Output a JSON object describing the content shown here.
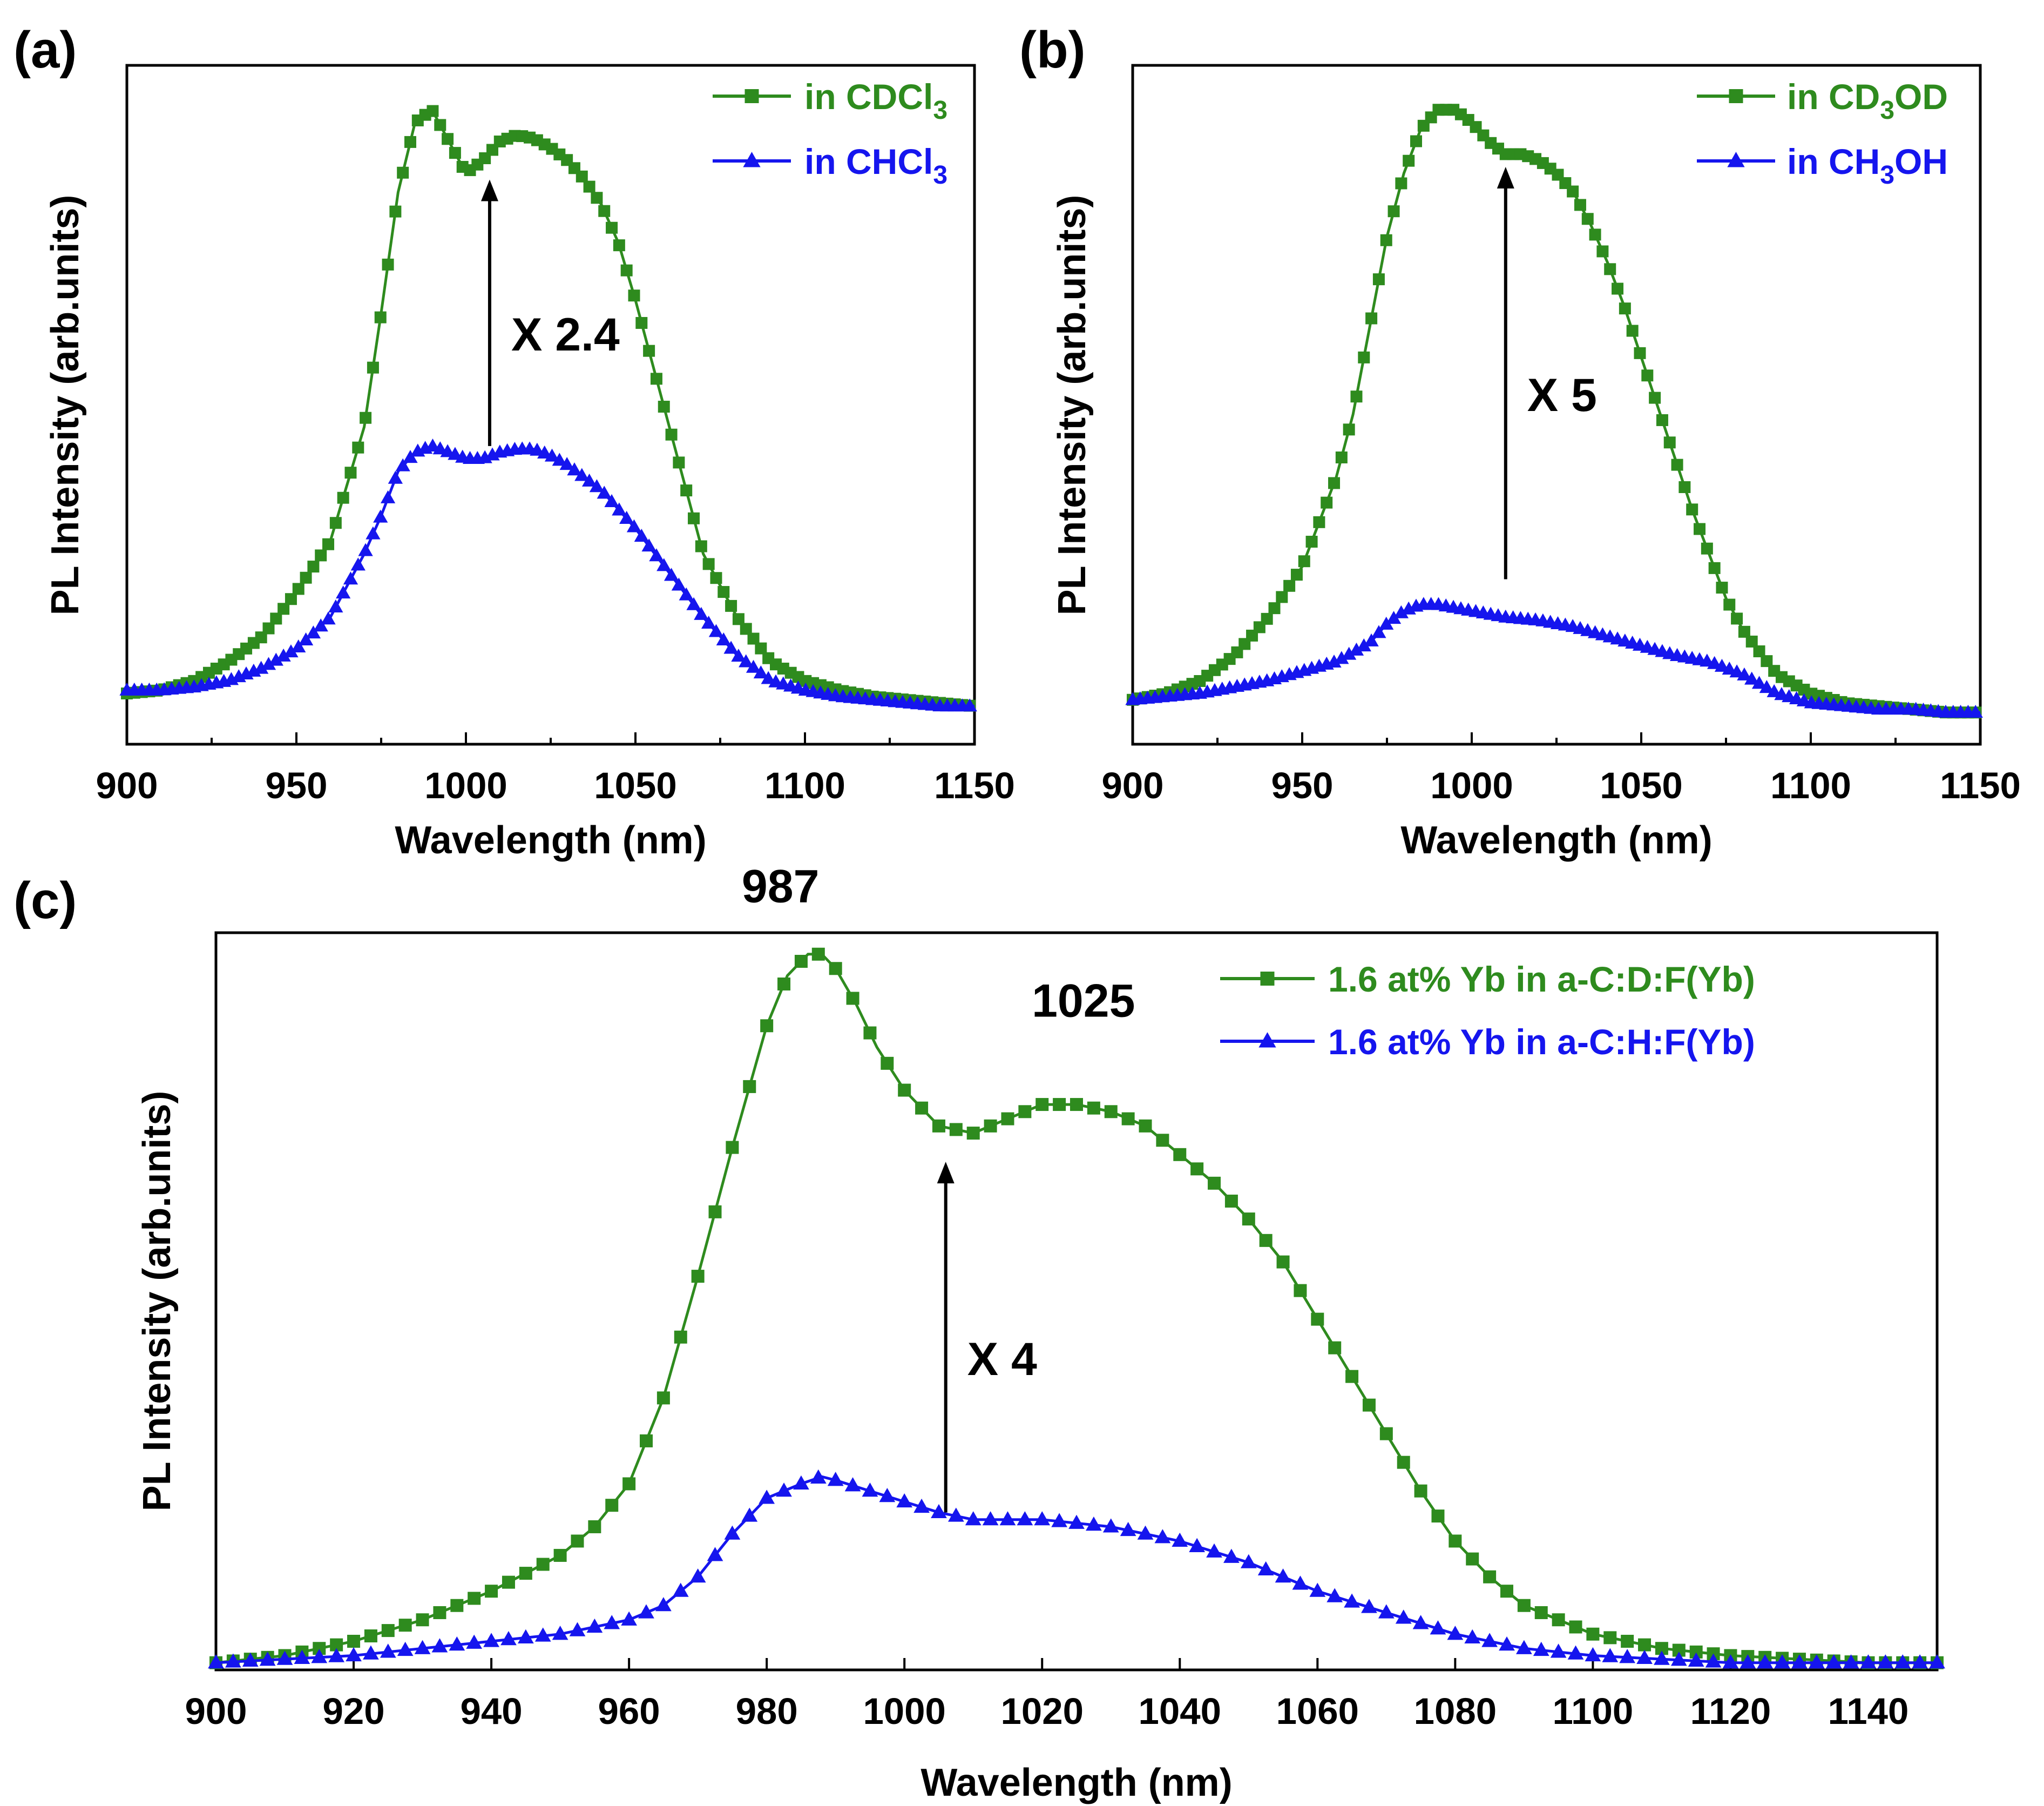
{
  "chart_data": [
    {
      "panel": "(a)",
      "type": "line",
      "xlabel": "Wavelength (nm)",
      "ylabel": "PL Intensity (arb.units)",
      "xlim": [
        900,
        1150
      ],
      "ylim": [
        0,
        1.07
      ],
      "xticks": [
        900,
        950,
        1000,
        1050,
        1100,
        1150
      ],
      "legend_position": "top-right",
      "annotation": "X 2.4",
      "arrow": {
        "x": 1007,
        "y_from": 0.47,
        "y_to": 0.89
      },
      "series": [
        {
          "name": "in CDCl3",
          "prefix": "in CDCl",
          "sub": "3",
          "suffix": "",
          "color": "#2E8B1E",
          "marker": "square",
          "x": [
            900,
            910,
            920,
            930,
            940,
            950,
            960,
            970,
            975,
            980,
            985,
            990,
            995,
            1000,
            1005,
            1010,
            1015,
            1020,
            1025,
            1030,
            1035,
            1040,
            1045,
            1050,
            1055,
            1060,
            1065,
            1070,
            1080,
            1090,
            1100,
            1110,
            1120,
            1130,
            1140,
            1150
          ],
          "y": [
            0.08,
            0.085,
            0.1,
            0.13,
            0.17,
            0.24,
            0.32,
            0.5,
            0.68,
            0.87,
            0.98,
            1.0,
            0.95,
            0.9,
            0.92,
            0.95,
            0.96,
            0.955,
            0.94,
            0.92,
            0.89,
            0.85,
            0.79,
            0.7,
            0.6,
            0.5,
            0.4,
            0.3,
            0.2,
            0.13,
            0.1,
            0.085,
            0.075,
            0.07,
            0.065,
            0.06
          ]
        },
        {
          "name": "in CHCl3",
          "prefix": "in CHCl",
          "sub": "3",
          "suffix": "",
          "color": "#1515EE",
          "marker": "triangle",
          "x": [
            900,
            910,
            920,
            930,
            940,
            950,
            960,
            970,
            975,
            980,
            985,
            990,
            995,
            1000,
            1005,
            1010,
            1015,
            1020,
            1025,
            1030,
            1040,
            1050,
            1060,
            1070,
            1080,
            1090,
            1100,
            1110,
            1120,
            1130,
            1140,
            1150
          ],
          "y": [
            0.085,
            0.085,
            0.09,
            0.1,
            0.12,
            0.15,
            0.2,
            0.3,
            0.36,
            0.43,
            0.46,
            0.47,
            0.46,
            0.45,
            0.45,
            0.46,
            0.465,
            0.465,
            0.455,
            0.44,
            0.4,
            0.34,
            0.27,
            0.2,
            0.14,
            0.1,
            0.085,
            0.075,
            0.07,
            0.065,
            0.06,
            0.06
          ]
        }
      ]
    },
    {
      "panel": "(b)",
      "type": "line",
      "xlabel": "Wavelength (nm)",
      "ylabel": "PL Intensity (arb.units)",
      "xlim": [
        900,
        1150
      ],
      "ylim": [
        0,
        1.07
      ],
      "xticks": [
        900,
        950,
        1000,
        1050,
        1100,
        1150
      ],
      "legend_position": "top-right",
      "annotation": "X 5",
      "arrow": {
        "x": 1010,
        "y_from": 0.26,
        "y_to": 0.91
      },
      "series": [
        {
          "name": "in CD3OD",
          "prefix": "in CD",
          "sub": "3",
          "suffix": "OD",
          "color": "#2E8B1E",
          "marker": "square",
          "x": [
            900,
            910,
            920,
            930,
            940,
            950,
            960,
            965,
            970,
            975,
            980,
            985,
            990,
            995,
            1000,
            1005,
            1010,
            1015,
            1020,
            1025,
            1030,
            1035,
            1040,
            1045,
            1050,
            1055,
            1060,
            1065,
            1070,
            1075,
            1080,
            1090,
            1100,
            1110,
            1120,
            1130,
            1140,
            1150
          ],
          "y": [
            0.07,
            0.08,
            0.1,
            0.14,
            0.2,
            0.28,
            0.42,
            0.52,
            0.66,
            0.8,
            0.9,
            0.97,
            1.0,
            1.0,
            0.98,
            0.95,
            0.93,
            0.93,
            0.92,
            0.9,
            0.87,
            0.82,
            0.76,
            0.69,
            0.61,
            0.53,
            0.45,
            0.37,
            0.3,
            0.23,
            0.18,
            0.11,
            0.08,
            0.065,
            0.06,
            0.055,
            0.05,
            0.05
          ]
        },
        {
          "name": "in CH3OH",
          "prefix": "in CH",
          "sub": "3",
          "suffix": "OH",
          "color": "#1515EE",
          "marker": "triangle",
          "x": [
            900,
            910,
            920,
            930,
            940,
            950,
            960,
            970,
            975,
            980,
            985,
            990,
            995,
            1000,
            1010,
            1020,
            1030,
            1040,
            1050,
            1060,
            1070,
            1080,
            1090,
            1100,
            1110,
            1120,
            1130,
            1140,
            1150
          ],
          "y": [
            0.07,
            0.075,
            0.08,
            0.09,
            0.1,
            0.115,
            0.13,
            0.16,
            0.19,
            0.21,
            0.22,
            0.22,
            0.215,
            0.21,
            0.2,
            0.195,
            0.185,
            0.17,
            0.155,
            0.14,
            0.13,
            0.11,
            0.08,
            0.065,
            0.06,
            0.055,
            0.055,
            0.05,
            0.05
          ]
        }
      ]
    },
    {
      "panel": "(c)",
      "type": "line",
      "xlabel": "Wavelength (nm)",
      "ylabel": "PL Intensity (arb.units)",
      "xlim": [
        900,
        1150
      ],
      "ylim": [
        0,
        1.03
      ],
      "xticks": [
        900,
        920,
        940,
        960,
        980,
        1000,
        1020,
        1040,
        1060,
        1080,
        1100,
        1120,
        1140
      ],
      "legend_position": "top-right",
      "annotation": "X 4",
      "arrow": {
        "x": 1006,
        "y_from": 0.22,
        "y_to": 0.71
      },
      "peak_labels": [
        {
          "text": "987",
          "x": 982,
          "y": 1.02
        },
        {
          "text": "1025",
          "x": 1026,
          "y": 0.86
        }
      ],
      "series": [
        {
          "name": "1.6 at%  Yb in a-C:D:F(Yb)",
          "prefix": "1.6 at%  Yb in a-C:D:F(Yb)",
          "sub": "",
          "suffix": "",
          "color": "#2E8B1E",
          "marker": "square",
          "x": [
            900,
            910,
            920,
            930,
            940,
            950,
            955,
            960,
            965,
            970,
            975,
            980,
            983,
            986,
            988,
            990,
            993,
            996,
            1000,
            1005,
            1010,
            1015,
            1020,
            1025,
            1030,
            1035,
            1040,
            1045,
            1050,
            1055,
            1060,
            1065,
            1070,
            1075,
            1080,
            1085,
            1090,
            1100,
            1110,
            1120,
            1130,
            1140,
            1150
          ],
          "y": [
            0.01,
            0.02,
            0.04,
            0.07,
            0.11,
            0.16,
            0.2,
            0.26,
            0.38,
            0.55,
            0.73,
            0.9,
            0.97,
            1.0,
            1.0,
            0.98,
            0.93,
            0.87,
            0.81,
            0.76,
            0.75,
            0.77,
            0.79,
            0.79,
            0.78,
            0.76,
            0.72,
            0.68,
            0.63,
            0.57,
            0.49,
            0.41,
            0.33,
            0.25,
            0.18,
            0.13,
            0.09,
            0.05,
            0.03,
            0.02,
            0.015,
            0.01,
            0.01
          ]
        },
        {
          "name": "1.6 at%  Yb in a-C:H:F(Yb)",
          "prefix": "1.6 at%  Yb in a-C:H:F(Yb)",
          "sub": "",
          "suffix": "",
          "color": "#1515EE",
          "marker": "triangle",
          "x": [
            900,
            910,
            920,
            930,
            940,
            950,
            960,
            965,
            970,
            975,
            980,
            985,
            988,
            990,
            995,
            1000,
            1005,
            1010,
            1020,
            1030,
            1040,
            1050,
            1060,
            1070,
            1080,
            1090,
            1100,
            1110,
            1120,
            1130,
            1140,
            1150
          ],
          "y": [
            0.01,
            0.015,
            0.02,
            0.03,
            0.04,
            0.05,
            0.07,
            0.09,
            0.13,
            0.19,
            0.24,
            0.26,
            0.27,
            0.265,
            0.25,
            0.235,
            0.22,
            0.21,
            0.21,
            0.2,
            0.18,
            0.15,
            0.11,
            0.08,
            0.05,
            0.03,
            0.02,
            0.015,
            0.01,
            0.01,
            0.01,
            0.01
          ]
        }
      ]
    }
  ]
}
